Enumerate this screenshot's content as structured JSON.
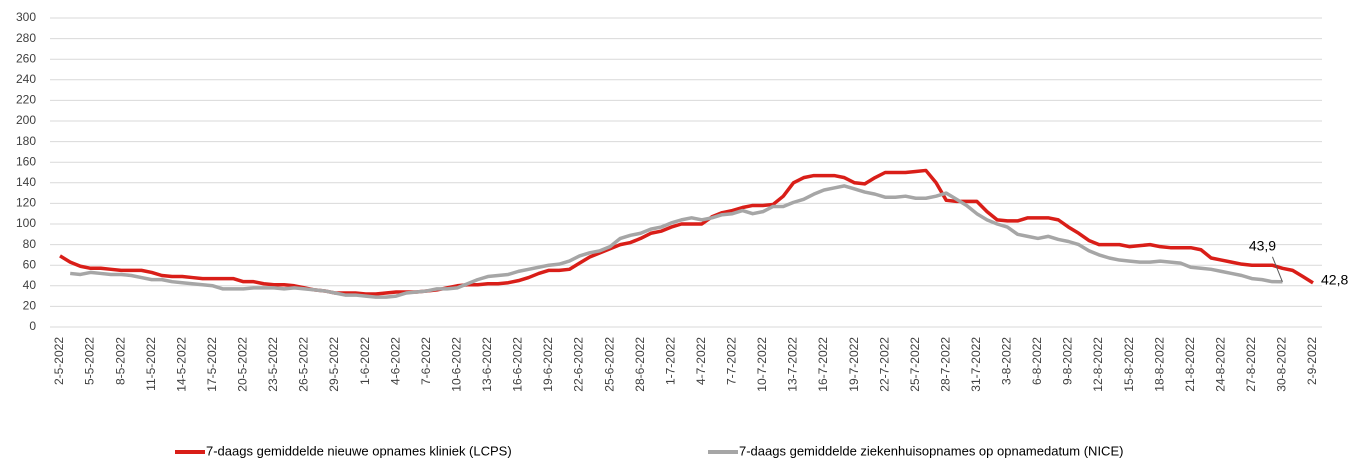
{
  "chart_data": {
    "type": "line",
    "categories": [
      "2-5-2022",
      null,
      null,
      "5-5-2022",
      null,
      null,
      "8-5-2022",
      null,
      null,
      "11-5-2022",
      null,
      null,
      "14-5-2022",
      null,
      null,
      "17-5-2022",
      null,
      null,
      "20-5-2022",
      null,
      null,
      "23-5-2022",
      null,
      null,
      "26-5-2022",
      null,
      null,
      "29-5-2022",
      null,
      null,
      "1-6-2022",
      null,
      null,
      "4-6-2022",
      null,
      null,
      "7-6-2022",
      null,
      null,
      "10-6-2022",
      null,
      null,
      "13-6-2022",
      null,
      null,
      "16-6-2022",
      null,
      null,
      "19-6-2022",
      null,
      null,
      "22-6-2022",
      null,
      null,
      "25-6-2022",
      null,
      null,
      "28-6-2022",
      null,
      null,
      "1-7-2022",
      null,
      null,
      "4-7-2022",
      null,
      null,
      "7-7-2022",
      null,
      null,
      "10-7-2022",
      null,
      null,
      "13-7-2022",
      null,
      null,
      "16-7-2022",
      null,
      null,
      "19-7-2022",
      null,
      null,
      "22-7-2022",
      null,
      null,
      "25-7-2022",
      null,
      null,
      "28-7-2022",
      null,
      null,
      "31-7-2022",
      null,
      null,
      "3-8-2022",
      null,
      null,
      "6-8-2022",
      null,
      null,
      "9-8-2022",
      null,
      null,
      "12-8-2022",
      null,
      null,
      "15-8-2022",
      null,
      null,
      "18-8-2022",
      null,
      null,
      "21-8-2022",
      null,
      null,
      "24-8-2022",
      null,
      null,
      "27-8-2022",
      null,
      null,
      "30-8-2022",
      null,
      null,
      "2-9-2022"
    ],
    "series": [
      {
        "name": "7-daags gemiddelde nieuwe opnames kliniek (LCPS)",
        "color": "#d91e18",
        "values": [
          69,
          63,
          59,
          57,
          57,
          56,
          55,
          55,
          55,
          53,
          50,
          49,
          49,
          48,
          47,
          47,
          47,
          47,
          44,
          44,
          42,
          41,
          41,
          40,
          38,
          36,
          35,
          33,
          33,
          33,
          32,
          32,
          33,
          34,
          34,
          34,
          35,
          36,
          38,
          40,
          41,
          41,
          42,
          42,
          43,
          45,
          48,
          52,
          55,
          55,
          56,
          62,
          68,
          72,
          76,
          80,
          82,
          86,
          91,
          93,
          97,
          100,
          100,
          100,
          107,
          111,
          113,
          116,
          118,
          118,
          119,
          127,
          140,
          145,
          147,
          147,
          147,
          145,
          140,
          139,
          145,
          150,
          150,
          150,
          151,
          152,
          140,
          123,
          122,
          122,
          122,
          112,
          104,
          103,
          103,
          106,
          106,
          106,
          104,
          97,
          91,
          84,
          80,
          80,
          80,
          78,
          79,
          80,
          78,
          77,
          77,
          77,
          75,
          67,
          65,
          63,
          61,
          60,
          60,
          60,
          57,
          55,
          49,
          42.8
        ],
        "value_labels": [
          null,
          null,
          null,
          null,
          null,
          null,
          null,
          null,
          null,
          null,
          null,
          null,
          null,
          null,
          null,
          null,
          null,
          null,
          null,
          null,
          null,
          null,
          null,
          null,
          null,
          null,
          null,
          null,
          null,
          null,
          null,
          null,
          null,
          null,
          null,
          null,
          null,
          null,
          null,
          null,
          null,
          null,
          null,
          null,
          null,
          null,
          null,
          null,
          null,
          null,
          null,
          null,
          null,
          null,
          null,
          null,
          null,
          null,
          null,
          null,
          null,
          null,
          null,
          null,
          null,
          null,
          null,
          null,
          null,
          null,
          null,
          null,
          null,
          null,
          null,
          null,
          null,
          null,
          null,
          null,
          null,
          null,
          null,
          null,
          null,
          null,
          null,
          null,
          null,
          null,
          null,
          null,
          null,
          null,
          null,
          null,
          null,
          null,
          null,
          null,
          null,
          null,
          null,
          null,
          null,
          null,
          null,
          null,
          null,
          null,
          null,
          null,
          null,
          null,
          null,
          null,
          null,
          null,
          null,
          null,
          null,
          null,
          null,
          "42,8"
        ]
      },
      {
        "name": "7-daags gemiddelde ziekenhuisopnames op opnamedatum (NICE)",
        "color": "#a6a6a6",
        "values": [
          null,
          52,
          51,
          53,
          52,
          51,
          51,
          50,
          48,
          46,
          46,
          44,
          43,
          42,
          41,
          40,
          37,
          37,
          37,
          38,
          38,
          38,
          37,
          38,
          37,
          36,
          35,
          33,
          31,
          31,
          30,
          29,
          29,
          30,
          33,
          34,
          35,
          37,
          37,
          38,
          42,
          46,
          49,
          50,
          51,
          54,
          56,
          58,
          60,
          61,
          64,
          69,
          72,
          74,
          78,
          86,
          89,
          91,
          95,
          97,
          101,
          104,
          106,
          104,
          106,
          109,
          110,
          113,
          110,
          112,
          117,
          117,
          121,
          124,
          129,
          133,
          135,
          137,
          134,
          131,
          129,
          126,
          126,
          127,
          125,
          125,
          127,
          130,
          124,
          118,
          110,
          104,
          100,
          97,
          90,
          88,
          86,
          88,
          85,
          83,
          80,
          74,
          70,
          67,
          65,
          64,
          63,
          63,
          64,
          63,
          62,
          58,
          57,
          56,
          54,
          52,
          50,
          47,
          46,
          44,
          43.9,
          null,
          null,
          null
        ],
        "value_labels": [
          null,
          null,
          null,
          null,
          null,
          null,
          null,
          null,
          null,
          null,
          null,
          null,
          null,
          null,
          null,
          null,
          null,
          null,
          null,
          null,
          null,
          null,
          null,
          null,
          null,
          null,
          null,
          null,
          null,
          null,
          null,
          null,
          null,
          null,
          null,
          null,
          null,
          null,
          null,
          null,
          null,
          null,
          null,
          null,
          null,
          null,
          null,
          null,
          null,
          null,
          null,
          null,
          null,
          null,
          null,
          null,
          null,
          null,
          null,
          null,
          null,
          null,
          null,
          null,
          null,
          null,
          null,
          null,
          null,
          null,
          null,
          null,
          null,
          null,
          null,
          null,
          null,
          null,
          null,
          null,
          null,
          null,
          null,
          null,
          null,
          null,
          null,
          null,
          null,
          null,
          null,
          null,
          null,
          null,
          null,
          null,
          null,
          null,
          null,
          null,
          null,
          null,
          null,
          null,
          null,
          null,
          null,
          null,
          null,
          null,
          null,
          null,
          null,
          null,
          null,
          null,
          null,
          null,
          null,
          null,
          "43,9",
          null,
          null,
          null
        ]
      }
    ],
    "ylim": [
      0,
      300
    ],
    "yticks": [
      0,
      20,
      40,
      60,
      80,
      100,
      120,
      140,
      160,
      180,
      200,
      220,
      240,
      260,
      280,
      300
    ],
    "grid": true
  }
}
